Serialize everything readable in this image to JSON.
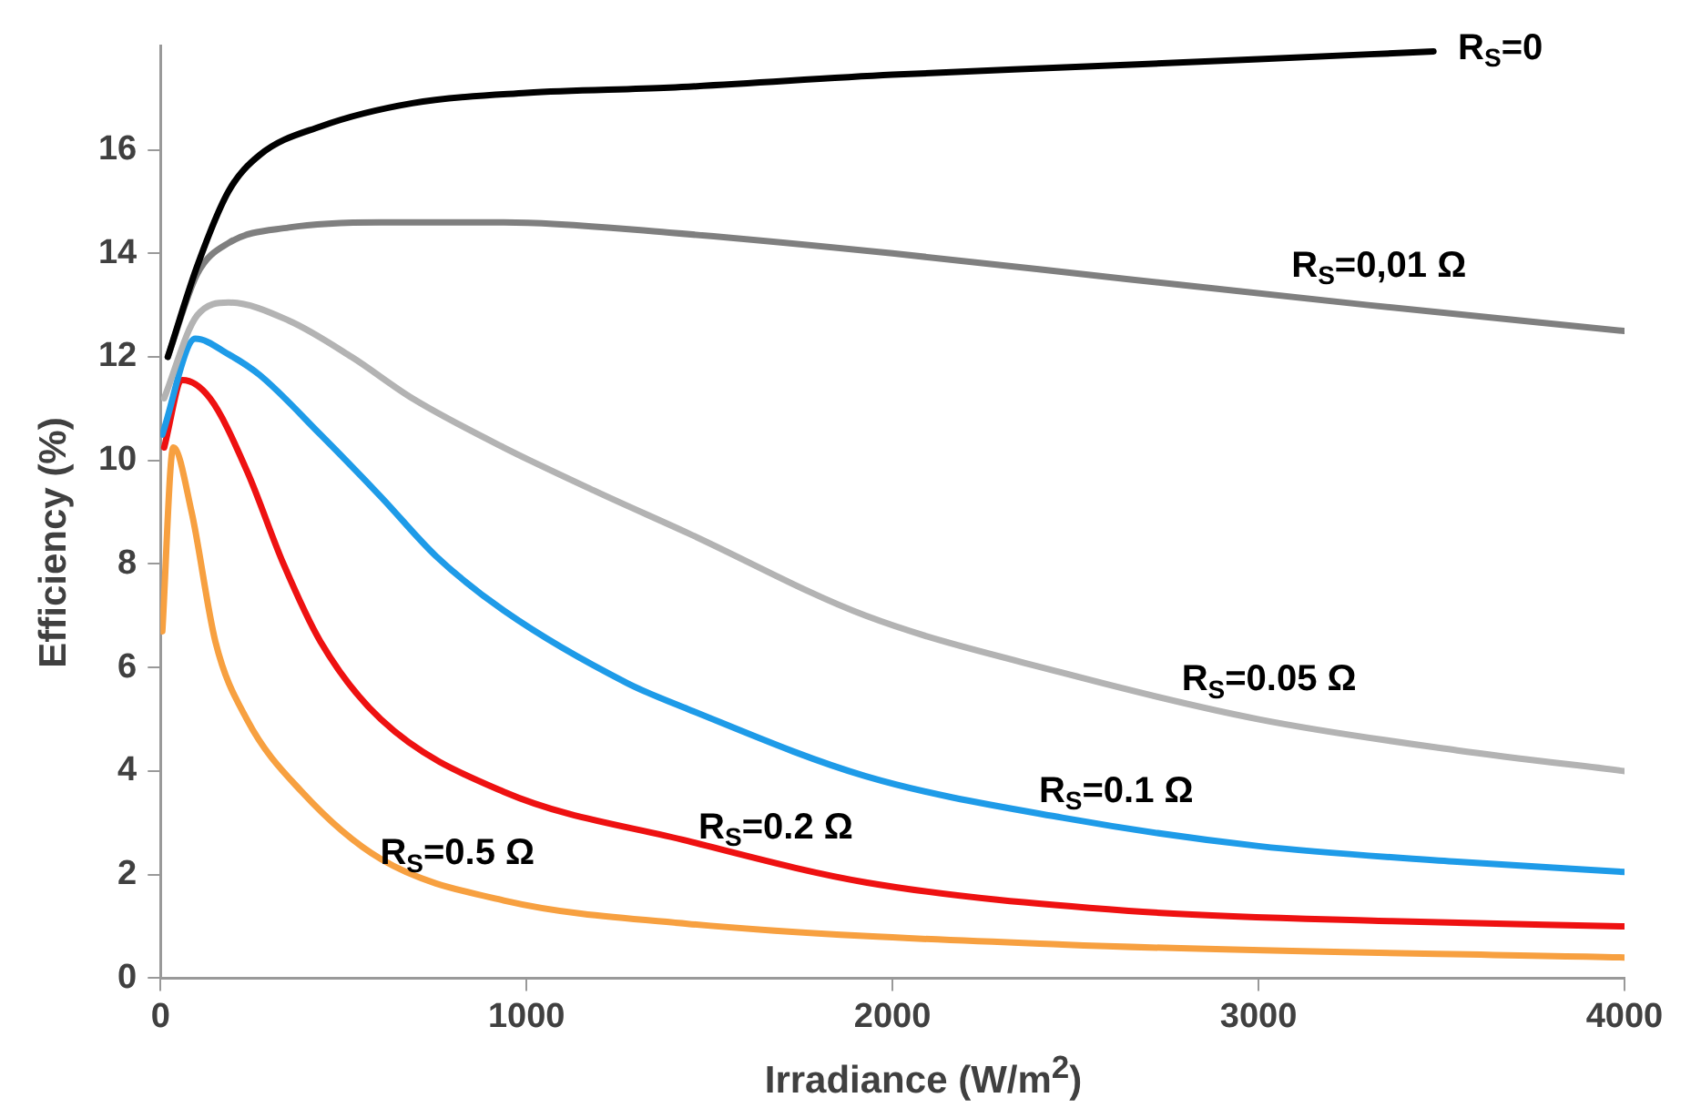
{
  "chart_data": {
    "type": "line",
    "xlabel": "Irradiance (W/m$^{2}$)",
    "ylabel": "Efficiency (%)",
    "xlim": [
      0,
      4000
    ],
    "xticks": [
      0,
      1000,
      2000,
      3000,
      4000
    ],
    "ylim": [
      0,
      18
    ],
    "yticks": [
      0,
      2,
      4,
      6,
      8,
      10,
      12,
      14,
      16
    ],
    "grid": false,
    "legend": false,
    "marker": "none",
    "line_style": "solid",
    "series": [
      {
        "name": "R$_{S}$=0",
        "color": "#000000",
        "x": [
          20,
          100,
          186,
          271,
          437,
          688,
          1000,
          1390,
          2000,
          2500,
          3000,
          3478
        ],
        "values": [
          12.0,
          13.75,
          15.2,
          15.9,
          16.45,
          16.9,
          17.1,
          17.2,
          17.45,
          17.6,
          17.75,
          17.9
        ]
      },
      {
        "name": "R$_{S}$=0,01 Ω",
        "color": "#7f7f7f",
        "x": [
          20,
          100,
          186,
          351,
          602,
          938,
          1390,
          2000,
          2645,
          3300,
          4000
        ],
        "values": [
          12.0,
          13.6,
          14.2,
          14.5,
          14.6,
          14.6,
          14.4,
          14.0,
          13.5,
          13.0,
          12.5
        ]
      },
      {
        "name": "R$_{S}$=0.05 Ω",
        "color": "#b3b3b3",
        "x": [
          10,
          100,
          186,
          351,
          522,
          688,
          938,
          1190,
          1440,
          1927,
          2464,
          3001,
          3543,
          4000
        ],
        "values": [
          11.2,
          12.8,
          13.05,
          12.7,
          12.0,
          11.2,
          10.25,
          9.4,
          8.6,
          7.0,
          5.9,
          5.0,
          4.4,
          4.0
        ]
      },
      {
        "name": "R$_{S}$=0.1 Ω",
        "color": "#1e9be8",
        "x": [
          5,
          95,
          186,
          271,
          437,
          602,
          753,
          938,
          1275,
          1440,
          1927,
          2464,
          3001,
          3543,
          4000
        ],
        "values": [
          10.5,
          12.35,
          12.05,
          11.65,
          10.5,
          9.3,
          8.15,
          7.1,
          5.7,
          5.2,
          3.9,
          3.1,
          2.55,
          2.25,
          2.05
        ]
      },
      {
        "name": "R$_{S}$=0.2 Ω",
        "color": "#ee1111",
        "x": [
          10,
          60,
          135,
          236,
          336,
          437,
          602,
          938,
          1440,
          1927,
          2645,
          3363,
          4000
        ],
        "values": [
          10.25,
          11.55,
          11.2,
          9.8,
          8.0,
          6.5,
          5.0,
          3.6,
          2.65,
          1.85,
          1.3,
          1.1,
          1.0
        ]
      },
      {
        "name": "R$_{S}$=0.5 Ω",
        "color": "#f7a040",
        "x": [
          5,
          35,
          85,
          150,
          236,
          386,
          602,
          938,
          1440,
          2464,
          4000
        ],
        "values": [
          6.7,
          10.25,
          9.0,
          6.5,
          5.0,
          3.6,
          2.3,
          1.5,
          1.05,
          0.65,
          0.4
        ]
      }
    ]
  }
}
